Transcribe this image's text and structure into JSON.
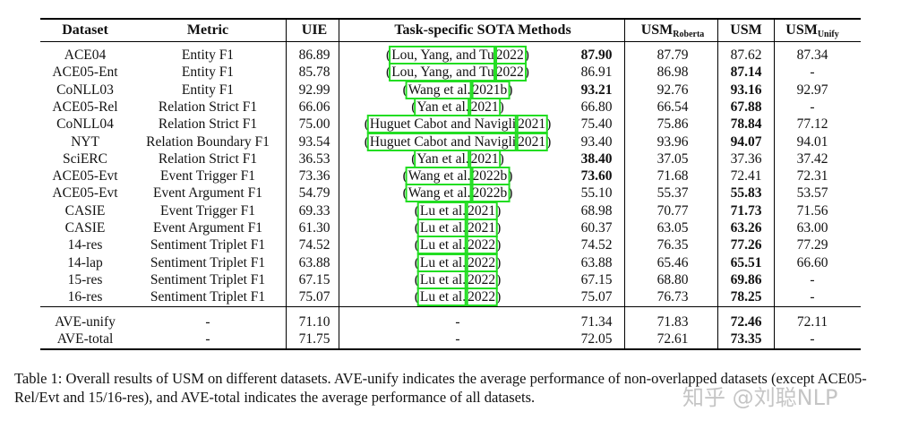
{
  "header": {
    "dataset": "Dataset",
    "metric": "Metric",
    "uie": "UIE",
    "sota": "Task-specific SOTA Methods",
    "usm_roberta_main": "USM",
    "usm_roberta_sub": "Roberta",
    "usm": "USM",
    "usm_unify_main": "USM",
    "usm_unify_sub": "Unify"
  },
  "rows": [
    {
      "dataset": "ACE04",
      "metric": "Entity F1",
      "uie": "86.89",
      "cite_a": "Lou, Yang, and Tu",
      "cite_b": "2022",
      "sota": "87.90",
      "sota_bold": true,
      "roberta": "87.79",
      "usm": "87.62",
      "usm_bold": false,
      "unify": "87.34"
    },
    {
      "dataset": "ACE05-Ent",
      "metric": "Entity F1",
      "uie": "85.78",
      "cite_a": "Lou, Yang, and Tu",
      "cite_b": "2022",
      "sota": "86.91",
      "sota_bold": false,
      "roberta": "86.98",
      "usm": "87.14",
      "usm_bold": true,
      "unify": "-"
    },
    {
      "dataset": "CoNLL03",
      "metric": "Entity F1",
      "uie": "92.99",
      "cite_a": "Wang et al.",
      "cite_b": "2021b",
      "sota": "93.21",
      "sota_bold": true,
      "roberta": "92.76",
      "usm": "93.16",
      "usm_bold": true,
      "unify": "92.97"
    },
    {
      "dataset": "ACE05-Rel",
      "metric": "Relation Strict F1",
      "uie": "66.06",
      "cite_a": "Yan et al.",
      "cite_b": "2021",
      "sota": "66.80",
      "sota_bold": false,
      "roberta": "66.54",
      "usm": "67.88",
      "usm_bold": true,
      "unify": "-"
    },
    {
      "dataset": "CoNLL04",
      "metric": "Relation Strict F1",
      "uie": "75.00",
      "cite_a": "Huguet Cabot and Navigli",
      "cite_b": "2021",
      "sota": "75.40",
      "sota_bold": false,
      "roberta": "75.86",
      "usm": "78.84",
      "usm_bold": true,
      "unify": "77.12"
    },
    {
      "dataset": "NYT",
      "metric": "Relation Boundary F1",
      "uie": "93.54",
      "cite_a": "Huguet Cabot and Navigli",
      "cite_b": "2021",
      "sota": "93.40",
      "sota_bold": false,
      "roberta": "93.96",
      "usm": "94.07",
      "usm_bold": true,
      "unify": "94.01"
    },
    {
      "dataset": "SciERC",
      "metric": "Relation Strict F1",
      "uie": "36.53",
      "cite_a": "Yan et al.",
      "cite_b": "2021",
      "sota": "38.40",
      "sota_bold": true,
      "roberta": "37.05",
      "usm": "37.36",
      "usm_bold": false,
      "unify": "37.42"
    },
    {
      "dataset": "ACE05-Evt",
      "metric": "Event Trigger F1",
      "uie": "73.36",
      "cite_a": "Wang et al.",
      "cite_b": "2022b",
      "sota": "73.60",
      "sota_bold": true,
      "roberta": "71.68",
      "usm": "72.41",
      "usm_bold": false,
      "unify": "72.31"
    },
    {
      "dataset": "ACE05-Evt",
      "metric": "Event Argument F1",
      "uie": "54.79",
      "cite_a": "Wang et al.",
      "cite_b": "2022b",
      "sota": "55.10",
      "sota_bold": false,
      "roberta": "55.37",
      "usm": "55.83",
      "usm_bold": true,
      "unify": "53.57"
    },
    {
      "dataset": "CASIE",
      "metric": "Event Trigger F1",
      "uie": "69.33",
      "cite_a": "Lu et al.",
      "cite_b": "2021",
      "sota": "68.98",
      "sota_bold": false,
      "roberta": "70.77",
      "usm": "71.73",
      "usm_bold": true,
      "unify": "71.56"
    },
    {
      "dataset": "CASIE",
      "metric": "Event Argument F1",
      "uie": "61.30",
      "cite_a": "Lu et al.",
      "cite_b": "2021",
      "sota": "60.37",
      "sota_bold": false,
      "roberta": "63.05",
      "usm": "63.26",
      "usm_bold": true,
      "unify": "63.00"
    },
    {
      "dataset": "14-res",
      "metric": "Sentiment Triplet F1",
      "uie": "74.52",
      "cite_a": "Lu et al.",
      "cite_b": "2022",
      "sota": "74.52",
      "sota_bold": false,
      "roberta": "76.35",
      "usm": "77.26",
      "usm_bold": true,
      "unify": "77.29"
    },
    {
      "dataset": "14-lap",
      "metric": "Sentiment Triplet F1",
      "uie": "63.88",
      "cite_a": "Lu et al.",
      "cite_b": "2022",
      "sota": "63.88",
      "sota_bold": false,
      "roberta": "65.46",
      "usm": "65.51",
      "usm_bold": true,
      "unify": "66.60"
    },
    {
      "dataset": "15-res",
      "metric": "Sentiment Triplet F1",
      "uie": "67.15",
      "cite_a": "Lu et al.",
      "cite_b": "2022",
      "sota": "67.15",
      "sota_bold": false,
      "roberta": "68.80",
      "usm": "69.86",
      "usm_bold": true,
      "unify": "-"
    },
    {
      "dataset": "16-res",
      "metric": "Sentiment Triplet F1",
      "uie": "75.07",
      "cite_a": "Lu et al.",
      "cite_b": "2022",
      "sota": "75.07",
      "sota_bold": false,
      "roberta": "76.73",
      "usm": "78.25",
      "usm_bold": true,
      "unify": "-"
    }
  ],
  "summary_rows": [
    {
      "dataset": "AVE-unify",
      "metric": "-",
      "uie": "71.10",
      "cite": "-",
      "sota": "71.34",
      "roberta": "71.83",
      "usm": "72.46",
      "unify": "72.11"
    },
    {
      "dataset": "AVE-total",
      "metric": "-",
      "uie": "71.75",
      "cite": "-",
      "sota": "72.05",
      "roberta": "72.61",
      "usm": "73.35",
      "unify": "-"
    }
  ],
  "caption": "Table 1: Overall results of USM on different datasets. AVE-unify indicates the average performance of non-overlapped datasets (except ACE05-Rel/Evt and 15/16-res), and AVE-total indicates the average performance of all datasets.",
  "watermark": "知乎 @刘聪NLP"
}
